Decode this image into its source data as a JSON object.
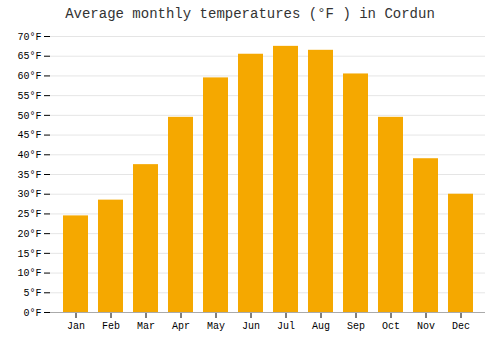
{
  "chart_data": {
    "type": "bar",
    "title": "Average monthly temperatures (°F ) in Cordun",
    "categories": [
      "Jan",
      "Feb",
      "Mar",
      "Apr",
      "May",
      "Jun",
      "Jul",
      "Aug",
      "Sep",
      "Oct",
      "Nov",
      "Dec"
    ],
    "values": [
      24.5,
      28.5,
      37.5,
      49.5,
      59.5,
      65.5,
      67.5,
      66.5,
      60.5,
      49.5,
      39.0,
      30.0
    ],
    "color": "#F5A800",
    "ylim": [
      0,
      70
    ],
    "yticks": [
      {
        "value": 0,
        "label": "0°F"
      },
      {
        "value": 5,
        "label": "5°F"
      },
      {
        "value": 10,
        "label": "10°F"
      },
      {
        "value": 15,
        "label": "15°F"
      },
      {
        "value": 20,
        "label": "20°F"
      },
      {
        "value": 25,
        "label": "25°F"
      },
      {
        "value": 30,
        "label": "30°F"
      },
      {
        "value": 35,
        "label": "35°F"
      },
      {
        "value": 40,
        "label": "40°F"
      },
      {
        "value": 45,
        "label": "45°F"
      },
      {
        "value": 50,
        "label": "50°F"
      },
      {
        "value": 55,
        "label": "55°F"
      },
      {
        "value": 60,
        "label": "60°F"
      },
      {
        "value": 65,
        "label": "65°F"
      },
      {
        "value": 70,
        "label": "70°F"
      }
    ],
    "grid": true
  }
}
